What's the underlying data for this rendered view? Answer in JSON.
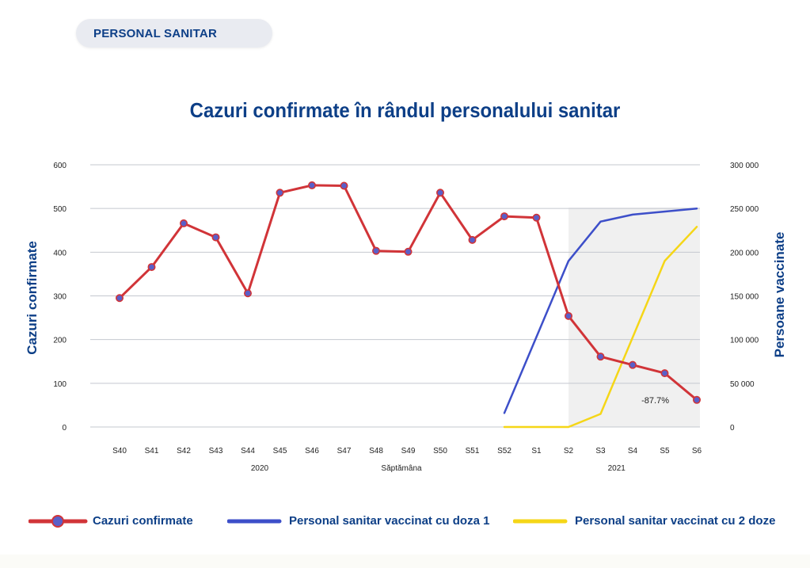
{
  "header": {
    "tag_label": "PERSONAL SANITAR"
  },
  "chart_data": {
    "type": "line",
    "title": "Cazuri confirmate în rândul personalului sanitar",
    "xlabel": "Săptămâna",
    "ylabel_left": "Cazuri confirmate",
    "ylabel_right": "Persoane vaccinate",
    "categories": [
      "S40",
      "S41",
      "S42",
      "S43",
      "S44",
      "S45",
      "S46",
      "S47",
      "S48",
      "S49",
      "S50",
      "S51",
      "S52",
      "S1",
      "S2",
      "S3",
      "S4",
      "S5",
      "S6"
    ],
    "year_labels": [
      {
        "label": "2020",
        "from": "S40",
        "to": "S52"
      },
      {
        "label": "2021",
        "from": "S1",
        "to": "S6"
      }
    ],
    "ylim_left": [
      0,
      600
    ],
    "yticks_left": [
      "0",
      "100",
      "200",
      "300",
      "400",
      "500",
      "600"
    ],
    "ylim_right": [
      0,
      300000
    ],
    "yticks_right": [
      "0",
      "50 000",
      "100 000",
      "150 000",
      "200 000",
      "250 000",
      "300 000"
    ],
    "shaded_region": {
      "from": "S2",
      "to": "S6"
    },
    "series": [
      {
        "name": "Cazuri confirmate",
        "axis": "left",
        "color": "#d13438",
        "marker_color": "#5a5fc8",
        "values": [
          295,
          366,
          466,
          434,
          306,
          536,
          553,
          552,
          403,
          401,
          536,
          428,
          482,
          479,
          254,
          161,
          142,
          123,
          62
        ]
      },
      {
        "name": "Personal sanitar vaccinat cu doza 1",
        "axis": "right",
        "color": "#3d4fc9",
        "values": [
          null,
          null,
          null,
          null,
          null,
          null,
          null,
          null,
          null,
          null,
          null,
          null,
          16000,
          null,
          190000,
          235000,
          243000,
          null,
          250000
        ]
      },
      {
        "name": "Personal sanitar vaccinat cu 2 doze",
        "axis": "right",
        "color": "#f5d617",
        "values": [
          null,
          null,
          null,
          null,
          null,
          null,
          null,
          null,
          null,
          null,
          null,
          null,
          0,
          0,
          0,
          15000,
          null,
          190000,
          229000
        ]
      }
    ],
    "annotations": [
      {
        "text": "-87.7%",
        "at": "S6"
      }
    ],
    "grid": true,
    "legend_position": "bottom"
  }
}
